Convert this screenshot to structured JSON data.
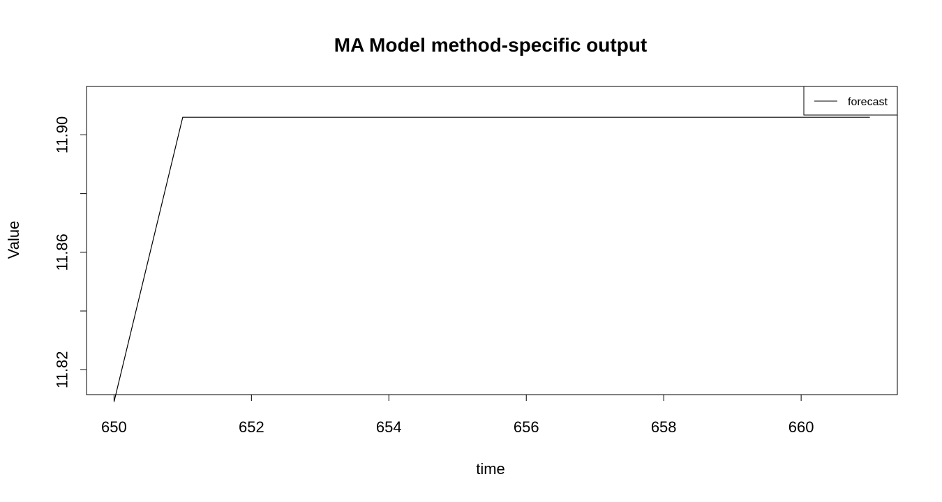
{
  "chart_data": {
    "type": "line",
    "title": "MA Model method-specific output",
    "xlabel": "time",
    "ylabel": "Value",
    "xlim": [
      649.6,
      661.4
    ],
    "ylim": [
      11.8115,
      11.9165
    ],
    "x_ticks": [
      650,
      652,
      654,
      656,
      658,
      660
    ],
    "y_ticks": [
      11.82,
      11.84,
      11.86,
      11.88,
      11.9
    ],
    "y_tick_labels": [
      "11.82",
      "",
      "11.86",
      "",
      "11.90"
    ],
    "grid": false,
    "legend_position": "top-right",
    "series": [
      {
        "name": "forecast",
        "color": "#000000",
        "x": [
          650,
          651,
          652,
          653,
          654,
          655,
          656,
          657,
          658,
          659,
          660,
          661
        ],
        "y": [
          11.809,
          11.906,
          11.906,
          11.906,
          11.906,
          11.906,
          11.906,
          11.906,
          11.906,
          11.906,
          11.906,
          11.906
        ]
      }
    ]
  }
}
